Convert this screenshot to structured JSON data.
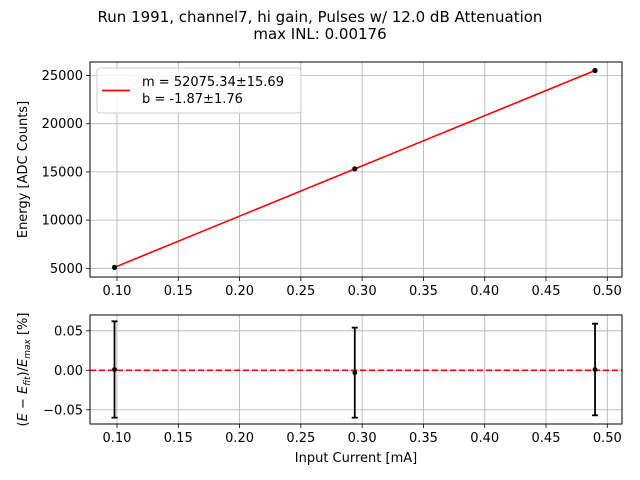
{
  "chart_data": [
    {
      "type": "line",
      "title_line1": "Run 1991, channel7, hi gain, Pulses w/ 12.0 dB Attenuation",
      "title_line2": "max INL: 0.00176",
      "xlabel": "",
      "ylabel": "Energy [ADC Counts]",
      "xlim": [
        0.078,
        0.512
      ],
      "ylim": [
        4100,
        26400
      ],
      "grid": true,
      "xticks": [
        "0.10",
        "0.15",
        "0.20",
        "0.25",
        "0.30",
        "0.35",
        "0.40",
        "0.45",
        "0.50"
      ],
      "yticks": [
        "5000",
        "10000",
        "15000",
        "20000",
        "25000"
      ],
      "points": {
        "x": [
          0.098,
          0.294,
          0.49
        ],
        "y": [
          5100,
          15320,
          25520
        ]
      },
      "fit": {
        "x": [
          0.098,
          0.49
        ],
        "y": [
          5101.5,
          25515.6
        ]
      },
      "line_color": "#ff0000",
      "legend": {
        "position": "top-left",
        "line1": "m = 52075.34±15.69",
        "line2": "b = -1.87±1.76"
      }
    },
    {
      "type": "scatter",
      "xlabel": "Input Current [mA]",
      "ylabel": "(E − E_fit)/E_max [%]",
      "xlim": [
        0.078,
        0.512
      ],
      "ylim": [
        -0.068,
        0.07
      ],
      "grid": true,
      "xticks": [
        "0.10",
        "0.15",
        "0.20",
        "0.25",
        "0.30",
        "0.35",
        "0.40",
        "0.45",
        "0.50"
      ],
      "yticks": [
        "0.05",
        "0.00",
        "−0.05"
      ],
      "points": {
        "x": [
          0.098,
          0.294,
          0.49
        ],
        "y": [
          0.001,
          -0.003,
          0.001
        ],
        "err": [
          0.061,
          0.057,
          0.058
        ]
      },
      "zero_line_color": "#ff0000"
    }
  ]
}
